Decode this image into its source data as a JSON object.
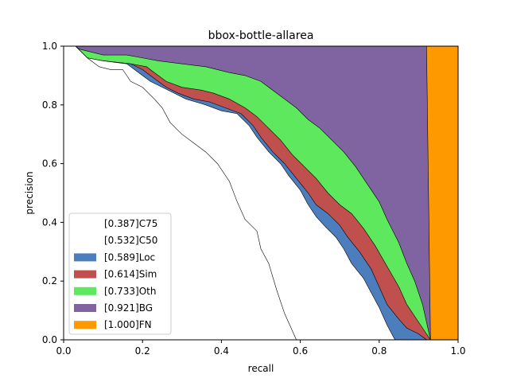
{
  "chart_data": {
    "type": "area",
    "title": "bbox-bottle-allarea",
    "xlabel": "recall",
    "ylabel": "precision",
    "xlim": [
      0.0,
      1.0
    ],
    "ylim": [
      0.0,
      1.0
    ],
    "xticks": [
      "0.0",
      "0.2",
      "0.4",
      "0.6",
      "0.8",
      "1.0"
    ],
    "yticks": [
      "0.0",
      "0.2",
      "0.4",
      "0.6",
      "0.8",
      "1.0"
    ],
    "grid": false,
    "legend_position": "lower-left",
    "series": [
      {
        "name": "[0.387]C75",
        "color": "#ffffff",
        "points": [
          [
            0.0,
            1.0
          ],
          [
            0.03,
            1.0
          ],
          [
            0.06,
            0.96
          ],
          [
            0.09,
            0.93
          ],
          [
            0.12,
            0.92
          ],
          [
            0.15,
            0.92
          ],
          [
            0.17,
            0.88
          ],
          [
            0.2,
            0.86
          ],
          [
            0.23,
            0.82
          ],
          [
            0.25,
            0.79
          ],
          [
            0.27,
            0.74
          ],
          [
            0.3,
            0.7
          ],
          [
            0.33,
            0.67
          ],
          [
            0.36,
            0.64
          ],
          [
            0.39,
            0.6
          ],
          [
            0.42,
            0.54
          ],
          [
            0.44,
            0.47
          ],
          [
            0.46,
            0.41
          ],
          [
            0.49,
            0.37
          ],
          [
            0.5,
            0.31
          ],
          [
            0.52,
            0.26
          ],
          [
            0.54,
            0.17
          ],
          [
            0.56,
            0.09
          ],
          [
            0.58,
            0.03
          ],
          [
            0.59,
            0.0
          ]
        ]
      },
      {
        "name": "[0.532]C50",
        "color": "#ffffff",
        "points": [
          [
            0.0,
            1.0
          ],
          [
            0.03,
            1.0
          ],
          [
            0.06,
            0.96
          ],
          [
            0.1,
            0.95
          ],
          [
            0.16,
            0.94
          ],
          [
            0.19,
            0.91
          ],
          [
            0.22,
            0.88
          ],
          [
            0.25,
            0.86
          ],
          [
            0.28,
            0.84
          ],
          [
            0.31,
            0.82
          ],
          [
            0.36,
            0.8
          ],
          [
            0.4,
            0.78
          ],
          [
            0.44,
            0.77
          ],
          [
            0.47,
            0.73
          ],
          [
            0.49,
            0.69
          ],
          [
            0.52,
            0.64
          ],
          [
            0.55,
            0.6
          ],
          [
            0.57,
            0.56
          ],
          [
            0.6,
            0.51
          ],
          [
            0.62,
            0.46
          ],
          [
            0.64,
            0.42
          ],
          [
            0.66,
            0.39
          ],
          [
            0.69,
            0.35
          ],
          [
            0.71,
            0.31
          ],
          [
            0.73,
            0.26
          ],
          [
            0.76,
            0.21
          ],
          [
            0.78,
            0.16
          ],
          [
            0.8,
            0.11
          ],
          [
            0.82,
            0.05
          ],
          [
            0.84,
            0.0
          ]
        ]
      },
      {
        "name": "[0.589]Loc",
        "color": "#4c7ebd",
        "points": [
          [
            0.0,
            1.0
          ],
          [
            0.03,
            1.0
          ],
          [
            0.06,
            0.96
          ],
          [
            0.1,
            0.95
          ],
          [
            0.17,
            0.94
          ],
          [
            0.2,
            0.92
          ],
          [
            0.23,
            0.89
          ],
          [
            0.26,
            0.86
          ],
          [
            0.29,
            0.84
          ],
          [
            0.33,
            0.82
          ],
          [
            0.37,
            0.81
          ],
          [
            0.41,
            0.79
          ],
          [
            0.45,
            0.77
          ],
          [
            0.48,
            0.73
          ],
          [
            0.5,
            0.69
          ],
          [
            0.53,
            0.64
          ],
          [
            0.56,
            0.6
          ],
          [
            0.59,
            0.55
          ],
          [
            0.62,
            0.5
          ],
          [
            0.64,
            0.46
          ],
          [
            0.67,
            0.43
          ],
          [
            0.7,
            0.39
          ],
          [
            0.72,
            0.35
          ],
          [
            0.75,
            0.3
          ],
          [
            0.78,
            0.24
          ],
          [
            0.8,
            0.18
          ],
          [
            0.82,
            0.12
          ],
          [
            0.85,
            0.07
          ],
          [
            0.87,
            0.04
          ],
          [
            0.9,
            0.02
          ],
          [
            0.92,
            0.0
          ]
        ]
      },
      {
        "name": "[0.614]Sim",
        "color": "#c0504d",
        "points": [
          [
            0.0,
            1.0
          ],
          [
            0.03,
            1.0
          ],
          [
            0.06,
            0.96
          ],
          [
            0.1,
            0.95
          ],
          [
            0.17,
            0.94
          ],
          [
            0.21,
            0.93
          ],
          [
            0.23,
            0.91
          ],
          [
            0.26,
            0.88
          ],
          [
            0.3,
            0.86
          ],
          [
            0.35,
            0.85
          ],
          [
            0.38,
            0.84
          ],
          [
            0.42,
            0.82
          ],
          [
            0.46,
            0.79
          ],
          [
            0.49,
            0.76
          ],
          [
            0.52,
            0.72
          ],
          [
            0.55,
            0.68
          ],
          [
            0.58,
            0.63
          ],
          [
            0.61,
            0.59
          ],
          [
            0.64,
            0.55
          ],
          [
            0.67,
            0.5
          ],
          [
            0.7,
            0.46
          ],
          [
            0.73,
            0.43
          ],
          [
            0.76,
            0.38
          ],
          [
            0.79,
            0.32
          ],
          [
            0.82,
            0.25
          ],
          [
            0.85,
            0.18
          ],
          [
            0.87,
            0.12
          ],
          [
            0.9,
            0.06
          ],
          [
            0.92,
            0.02
          ],
          [
            0.93,
            0.0
          ]
        ]
      },
      {
        "name": "[0.733]Oth",
        "color": "#5ee85e",
        "points": [
          [
            0.0,
            1.0
          ],
          [
            0.03,
            1.0
          ],
          [
            0.04,
            0.99
          ],
          [
            0.1,
            0.97
          ],
          [
            0.16,
            0.97
          ],
          [
            0.2,
            0.96
          ],
          [
            0.24,
            0.95
          ],
          [
            0.3,
            0.94
          ],
          [
            0.36,
            0.93
          ],
          [
            0.42,
            0.91
          ],
          [
            0.46,
            0.9
          ],
          [
            0.5,
            0.88
          ],
          [
            0.53,
            0.85
          ],
          [
            0.56,
            0.82
          ],
          [
            0.59,
            0.79
          ],
          [
            0.62,
            0.75
          ],
          [
            0.65,
            0.72
          ],
          [
            0.68,
            0.68
          ],
          [
            0.71,
            0.64
          ],
          [
            0.74,
            0.59
          ],
          [
            0.77,
            0.53
          ],
          [
            0.8,
            0.47
          ],
          [
            0.82,
            0.41
          ],
          [
            0.85,
            0.33
          ],
          [
            0.87,
            0.26
          ],
          [
            0.89,
            0.2
          ],
          [
            0.91,
            0.12
          ],
          [
            0.92,
            0.06
          ],
          [
            0.93,
            0.0
          ]
        ]
      },
      {
        "name": "[0.921]BG",
        "color": "#8064a2",
        "points": [
          [
            0.0,
            1.0
          ],
          [
            0.92,
            1.0
          ],
          [
            0.925,
            0.5
          ],
          [
            0.93,
            0.0
          ]
        ]
      },
      {
        "name": "[1.000]FN",
        "color": "#ff9900",
        "points": [
          [
            0.0,
            1.0
          ],
          [
            1.0,
            1.0
          ],
          [
            1.0,
            0.0
          ]
        ]
      }
    ]
  }
}
